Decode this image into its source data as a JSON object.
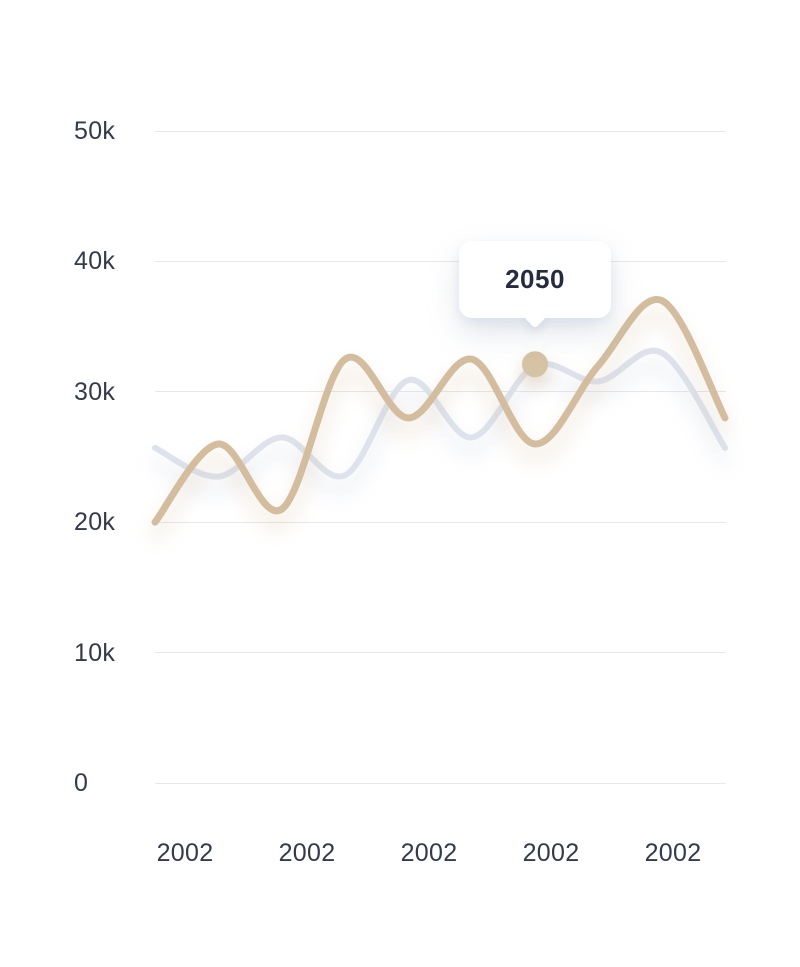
{
  "page": {
    "background_color": "#ffffff"
  },
  "chart_data": {
    "type": "line",
    "title": "",
    "xlabel": "",
    "ylabel": "",
    "ylim": [
      0,
      50000
    ],
    "grid": "horizontal",
    "legend": "none",
    "grid_color": "#e7e8ea",
    "axis_label_color": "#333a4b",
    "y_ticks": [
      {
        "label": "50k",
        "value": 50000
      },
      {
        "label": "40k",
        "value": 40000
      },
      {
        "label": "30k",
        "value": 30000
      },
      {
        "label": "20k",
        "value": 20000
      },
      {
        "label": "10k",
        "value": 10000
      },
      {
        "label": "0",
        "value": 0
      }
    ],
    "x_tick_labels": [
      "2002",
      "2002",
      "2002",
      "2002",
      "2002"
    ],
    "series": [
      {
        "name": "gray-series",
        "color": "#dde2ec",
        "values": [
          25700,
          23500,
          26500,
          23600,
          30900,
          26500,
          32000,
          30800,
          33000,
          25700
        ]
      },
      {
        "name": "beige-series",
        "color": "#d3bd9e",
        "values": [
          20000,
          26000,
          21000,
          32500,
          28000,
          32500,
          26000,
          32000,
          37000,
          28000
        ]
      }
    ],
    "tooltip": {
      "label": "2050",
      "series": "gray-series",
      "point_index": 6,
      "value": 32000,
      "bg_color": "#ffffff",
      "text_color": "#252c40",
      "marker_color": "#d6c2a4"
    }
  }
}
